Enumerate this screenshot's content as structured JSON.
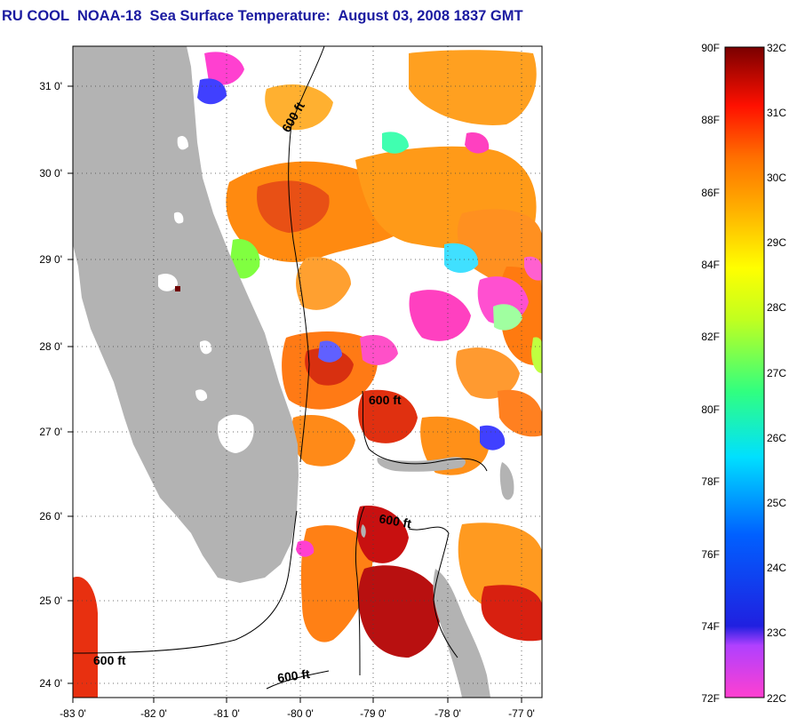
{
  "title": "RU COOL  NOAA-18  Sea Surface Temperature:  August 03, 2008 1837 GMT",
  "colors": {
    "land": "#b3b3b3",
    "title": "#1a1aa0",
    "warm": "#ff8a10",
    "hot": "#c81010",
    "cool_mix": "#ff40c0"
  },
  "map": {
    "lon_ticks": [
      "-83 0'",
      "-82 0'",
      "-81 0'",
      "-80 0'",
      "-79 0'",
      "-78 0'",
      "-77 0'"
    ],
    "lat_ticks": [
      "31 0'",
      "30 0'",
      "29 0'",
      "28 0'",
      "27 0'",
      "26 0'",
      "25 0'",
      "24 0'"
    ],
    "contours": [
      "600 ft",
      "600 ft",
      "600 ft",
      "600 ft",
      "600 ft"
    ]
  },
  "colorbar": {
    "fahrenheit": [
      "90F",
      "88F",
      "86F",
      "84F",
      "82F",
      "80F",
      "78F",
      "76F",
      "74F",
      "72F"
    ],
    "celsius": [
      "32C",
      "31C",
      "30C",
      "29C",
      "28C",
      "27C",
      "26C",
      "25C",
      "24C",
      "23C",
      "22C"
    ],
    "range_f": [
      72,
      90
    ],
    "range_c": [
      22,
      32
    ]
  }
}
